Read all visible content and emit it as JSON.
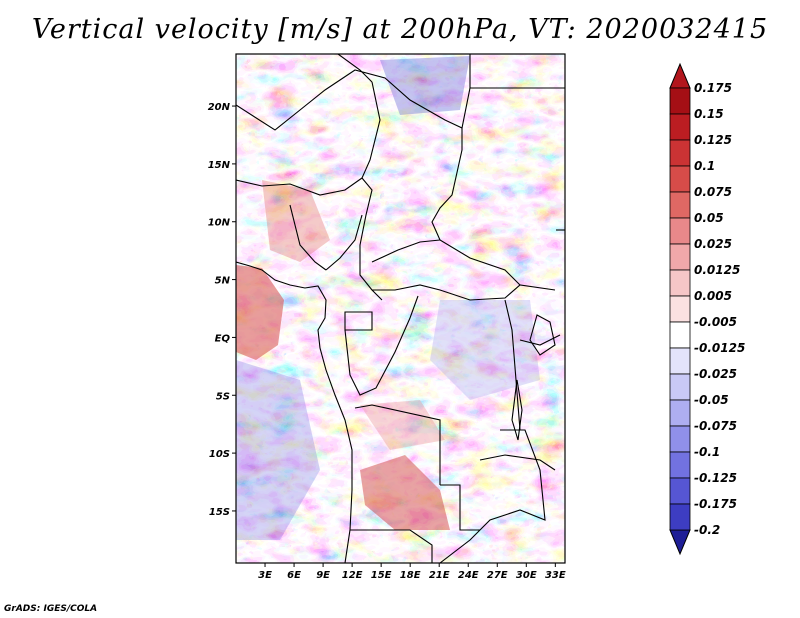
{
  "title": "Vertical velocity [m/s] at 200hPa, VT: 2020032415",
  "credit": "GrADS: IGES/COLA",
  "map": {
    "region": "Central Africa",
    "lon_range": [
      0,
      34
    ],
    "lat_range": [
      -19.5,
      24.5
    ],
    "lat_ticks": [
      {
        "value": 20,
        "label": "20N"
      },
      {
        "value": 15,
        "label": "15N"
      },
      {
        "value": 10,
        "label": "10N"
      },
      {
        "value": 5,
        "label": "5N"
      },
      {
        "value": 0,
        "label": "EQ"
      },
      {
        "value": -5,
        "label": "5S"
      },
      {
        "value": -10,
        "label": "10S"
      },
      {
        "value": -15,
        "label": "15S"
      }
    ],
    "lon_ticks": [
      {
        "value": 3,
        "label": "3E"
      },
      {
        "value": 6,
        "label": "6E"
      },
      {
        "value": 9,
        "label": "9E"
      },
      {
        "value": 12,
        "label": "12E"
      },
      {
        "value": 15,
        "label": "15E"
      },
      {
        "value": 18,
        "label": "18E"
      },
      {
        "value": 21,
        "label": "21E"
      },
      {
        "value": 24,
        "label": "24E"
      },
      {
        "value": 27,
        "label": "27E"
      },
      {
        "value": 30,
        "label": "30E"
      },
      {
        "value": 33,
        "label": "33E"
      }
    ]
  },
  "colorbar": {
    "levels": [
      {
        "label": "0.175",
        "color": "#a50f15"
      },
      {
        "label": "0.15",
        "color": "#bb1d22"
      },
      {
        "label": "0.125",
        "color": "#cb3334"
      },
      {
        "label": "0.1",
        "color": "#d64c49"
      },
      {
        "label": "0.075",
        "color": "#df6864"
      },
      {
        "label": "0.05",
        "color": "#e8888a"
      },
      {
        "label": "0.025",
        "color": "#f1a8aa"
      },
      {
        "label": "0.0125",
        "color": "#f6c6c7"
      },
      {
        "label": "0.005",
        "color": "#fbe1e1"
      },
      {
        "label": "-0.005",
        "color": "#ffffff"
      },
      {
        "label": "-0.0125",
        "color": "#e3e3fb"
      },
      {
        "label": "-0.025",
        "color": "#c9c9f6"
      },
      {
        "label": "-0.05",
        "color": "#aeaef1"
      },
      {
        "label": "-0.075",
        "color": "#9090ea"
      },
      {
        "label": "-0.1",
        "color": "#7272e0"
      },
      {
        "label": "-0.125",
        "color": "#5656d3"
      },
      {
        "label": "-0.175",
        "color": "#3d3dc2"
      },
      {
        "label": "-0.2",
        "color": "#2828ab"
      }
    ],
    "top_color": "#b2161d",
    "bottom_color": "#1e1e96"
  }
}
